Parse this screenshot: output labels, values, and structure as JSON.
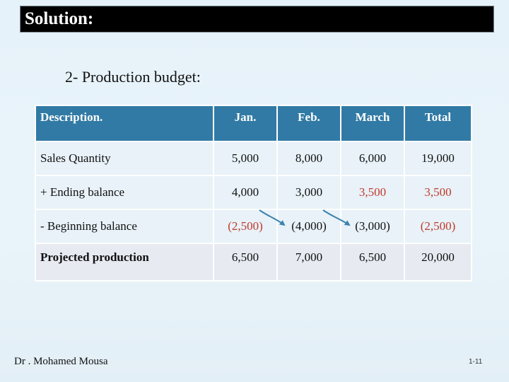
{
  "title": "Solution:",
  "subtitle": "2- Production budget:",
  "table": {
    "headers": [
      "Description.",
      "Jan.",
      "Feb.",
      "March",
      "Total"
    ],
    "rows": [
      {
        "label": "Sales Quantity",
        "values": [
          "5,000",
          "8,000",
          "6,000",
          "19,000"
        ]
      },
      {
        "label": "+ Ending balance",
        "values": [
          "4,000",
          "3,000",
          "3,500",
          "3,500"
        ]
      },
      {
        "label": "- Beginning balance",
        "values": [
          "(2,500)",
          "(4,000)",
          "(3,000)",
          "(2,500)"
        ]
      },
      {
        "label": "Projected production",
        "values": [
          "6,500",
          "7,000",
          "6,500",
          "20,000"
        ]
      }
    ]
  },
  "highlight_color": "#c0392b",
  "arrow_color": "#3d82ad",
  "author": "Dr . Mohamed Mousa",
  "page_number": "1-11"
}
